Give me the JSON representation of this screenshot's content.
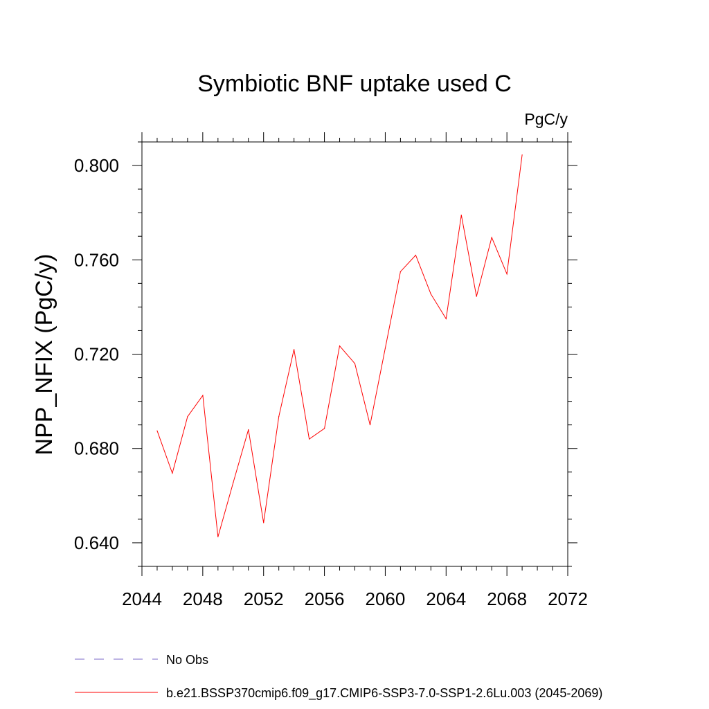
{
  "chart_data": {
    "type": "line",
    "title": "Symbiotic BNF uptake used C",
    "units_label": "PgC/y",
    "xlabel": "",
    "ylabel": "NPP_NFIX  (PgC/y)",
    "xlim": [
      2044,
      2072
    ],
    "ylim": [
      0.63,
      0.81
    ],
    "x_ticks": [
      "2044",
      "2048",
      "2052",
      "2056",
      "2060",
      "2064",
      "2068",
      "2072"
    ],
    "y_ticks": [
      "0.640",
      "0.680",
      "0.720",
      "0.760",
      "0.800"
    ],
    "grid": false,
    "legend_position": "bottom-left",
    "series": [
      {
        "name": "b.e21.BSSP370cmip6.f09_g17.CMIP6-SSP3-7.0-SSP1-2.6Lu.003 (2045-2069)",
        "color": "#ff0000",
        "dash": "solid",
        "x": [
          2045,
          2046,
          2047,
          2048,
          2049,
          2050,
          2051,
          2052,
          2053,
          2054,
          2055,
          2056,
          2057,
          2058,
          2059,
          2060,
          2061,
          2062,
          2063,
          2064,
          2065,
          2066,
          2067,
          2068,
          2069
        ],
        "values": [
          0.6875,
          0.6695,
          0.6935,
          0.7025,
          0.6425,
          0.6655,
          0.688,
          0.6485,
          0.6935,
          0.722,
          0.684,
          0.6885,
          0.7235,
          0.716,
          0.69,
          0.7225,
          0.755,
          0.762,
          0.7455,
          0.735,
          0.779,
          0.7445,
          0.7695,
          0.754,
          0.8045
        ]
      }
    ],
    "legend": [
      {
        "label": "No Obs",
        "color": "#7b68c8",
        "dash": "dashed"
      },
      {
        "label": "b.e21.BSSP370cmip6.f09_g17.CMIP6-SSP3-7.0-SSP1-2.6Lu.003 (2045-2069)",
        "color": "#ff0000",
        "dash": "solid"
      }
    ]
  }
}
